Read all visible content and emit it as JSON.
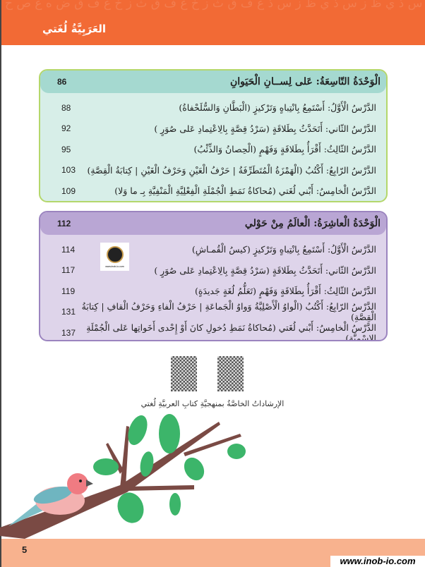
{
  "header": {
    "book_title": "العَرَبِيَّةُ لُغَتي",
    "pattern_letters": "ز س ذ ي ظ ز س ذ ي ظ ز س ذ غ ف ق ث ز خ غ ف ق ث ز خ غ ف ق ض ه ع ص ح ض ه ع ص ح ض ه ع ص"
  },
  "units": [
    {
      "title": "الْوَحْدَةُ التّاسِعَةُ: عَلى لِســانِ الْحَيَوانِ",
      "page": "86",
      "color": "#a5d9d0",
      "lessons": [
        {
          "title": "الدَّرْسُ الْأَوَّلُ: أَسْتَمِعُ بِانْتِباهٍ وَتَرْكيزٍ (الْبَطَّانِ وَالسُّلَحْفاةُ)",
          "page": "88"
        },
        {
          "title": "الدَّرْسُ الثّاني: أَتَحَدَّثُ بِطَلاقَةٍ (سَرْدُ قِصَّةٍ بِالِاعْتِمادِ عَلى صُوَرٍ )",
          "page": "92"
        },
        {
          "title": "الدَّرْسُ الثّالِثُ: أَقْرَأُ بِطَلاقَةٍ وَفَهْمٍ (الْحِصانُ وَالذِّئْبُ)",
          "page": "95"
        },
        {
          "title": "الدَّرْسُ الرّابِعُ: أَكْتُبُ (الْهَمْزَةُ الْمُتَطَرِّفَةُ | حَرْفُ الْعَيْنِ وَحَرْفُ الْغَيْنِ | كِتابَةُ الْقِصَّةِ)",
          "page": "103"
        },
        {
          "title": "الدَّرْسُ الْخامِسُ: أَبْني لُغَتي (مُحاكاةُ نَمَطِ الْجُمْلَةِ الْفِعْلِيَّةِ الْمَنْفِيَّةِ بِـ ما وَلا)",
          "page": "109"
        }
      ]
    },
    {
      "title": "الْوَحْدَةُ الْعاشِرَةُ: الْعالَمُ مِنْ حَوْلي",
      "page": "112",
      "color": "#b9a6d4",
      "lessons": [
        {
          "title": "الدَّرْسُ الْأَوَّلُ: أَسْتَمِعُ بِانْتِباهٍ وَتَرْكيزٍ (كيسُ الْقُمـاشِ)",
          "page": "114"
        },
        {
          "title": "الدَّرْسُ الثّاني: أَتَحَدَّثُ بِطَلاقَةٍ (سَرْدُ قِصَّةٍ بِالِاعْتِمادِ عَلى صُوَرٍ )",
          "page": "117"
        },
        {
          "title": "الدَّرْسُ الثّالِثُ: أَقْرَأُ بِطَلاقَةٍ وَفَهْمٍ (تَعَلُّمُ لُغَةٍ جَديدَةٍ)",
          "page": "119"
        },
        {
          "title": "الدَّرْسُ الرّابِعُ: أَكْتُبُ (الْواوُ الْأَصْلِيَّةُ وَواوُ الْجَماعَةِ | حَرْفُ الْفاءِ وَحَرْفُ الْقافِ | كِتابَةُ الْقِصَّةِ)",
          "page": "131"
        },
        {
          "title": "الدَّرْسُ الْخامِسُ: أَبْني لُغَتي (مُحاكاةُ نَمَطِ دُخولِ كانَ أَوْ إِحْدى أَخَواتِها عَلى الْجُمْلَةِ الِاسْمِيَّةِ)",
          "page": "137"
        }
      ]
    }
  ],
  "watermark_logo": {
    "text": "www.inob-io.com"
  },
  "qr_caption": "الإرشاداتُ الخاصَّةُ بمنهجيَّةِ كتابِ العربيَّةِ لُغتي",
  "footer": {
    "page_number": "5",
    "watermark": "www.inob-io.com"
  }
}
